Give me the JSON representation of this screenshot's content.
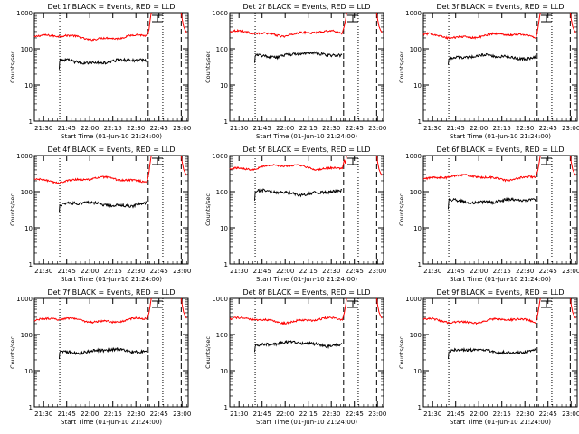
{
  "chart_data": {
    "type": "line",
    "layout": "3x3 grid of panels",
    "y_scale": "log",
    "ylim": [
      1,
      1000
    ],
    "y_ticks": [
      "1",
      "10",
      "100",
      "1000"
    ],
    "ylabel": "Counts/sec",
    "x_ticks": [
      "21:30",
      "21:45",
      "22:00",
      "22:15",
      "22:30",
      "22:45",
      "23:00"
    ],
    "xlabel": "Start Time (01-Jun-10 21:24:00)",
    "x_range_minutes_after_start": [
      0,
      100
    ],
    "series_colors": {
      "events": "#000000",
      "lld": "#ff0000"
    },
    "markers": {
      "dotted": [
        16.5,
        83.5
      ],
      "dashed": [
        74,
        95.5
      ],
      "error_bar": 80
    },
    "panels": [
      {
        "title": "Det 1f BLACK = Events, RED = LLD",
        "events_level": 45,
        "lld_level": 210
      },
      {
        "title": "Det 2f BLACK = Events, RED = LLD",
        "events_level": 68,
        "lld_level": 270
      },
      {
        "title": "Det 3f BLACK = Events, RED = LLD",
        "events_level": 60,
        "lld_level": 230
      },
      {
        "title": "Det 4f BLACK = Events, RED = LLD",
        "events_level": 45,
        "lld_level": 215
      },
      {
        "title": "Det 5f BLACK = Events, RED = LLD",
        "events_level": 95,
        "lld_level": 480
      },
      {
        "title": "Det 6f BLACK = Events, RED = LLD",
        "events_level": 55,
        "lld_level": 250
      },
      {
        "title": "Det 7f BLACK = Events, RED = LLD",
        "events_level": 35,
        "lld_level": 250
      },
      {
        "title": "Det 8f BLACK = Events, RED = LLD",
        "events_level": 55,
        "lld_level": 250
      },
      {
        "title": "Det 9f BLACK = Events, RED = LLD",
        "events_level": 35,
        "lld_level": 240
      }
    ]
  }
}
